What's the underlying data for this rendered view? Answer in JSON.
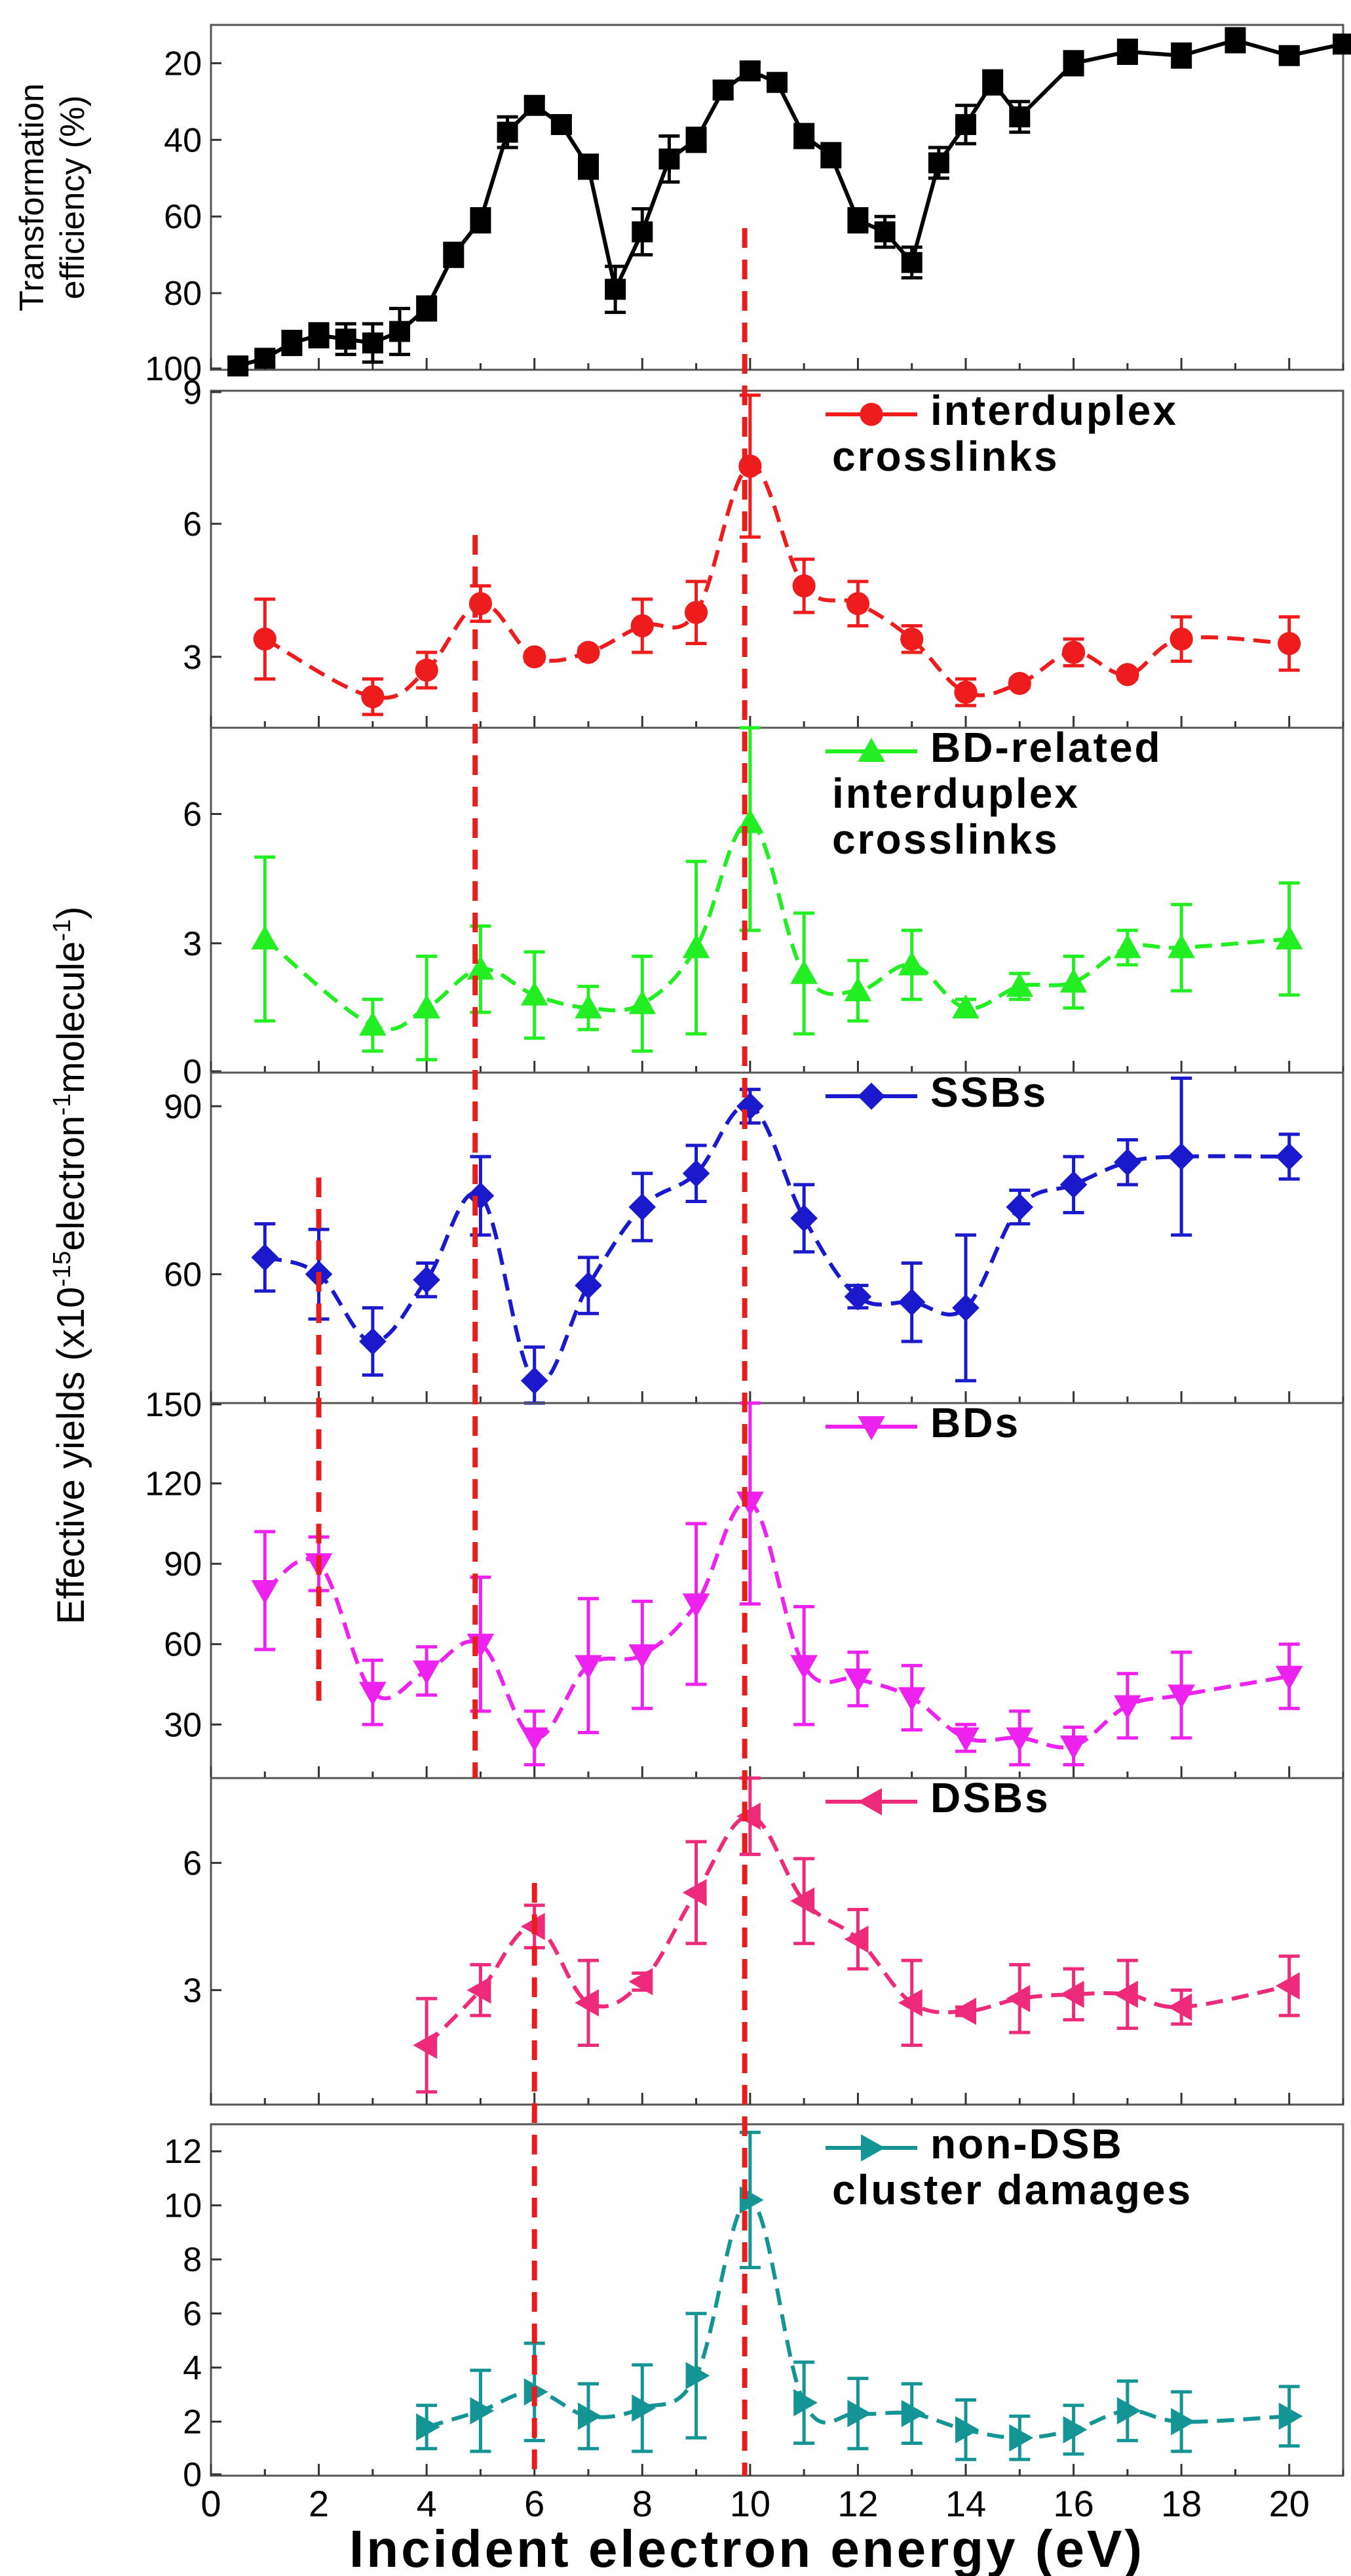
{
  "chart_data": {
    "type": "line",
    "xlabel": "Incident electron energy (eV)",
    "xlim": [
      0,
      21
    ],
    "xticks": [
      "0",
      "2",
      "4",
      "6",
      "8",
      "10",
      "12",
      "14",
      "16",
      "18",
      "20"
    ],
    "shared_ylabel": "Effective yields (x10^-15 electron^-1 molecule^-1)",
    "shared_ylabel_parts": {
      "base": "Effective yields (x10",
      "exp1": "-15",
      "mid1": "electron",
      "exp2": "-1",
      "mid2": "molecule",
      "exp3": "-1",
      "end": ")"
    },
    "dashed_guides_ev": [
      2,
      4.9,
      6,
      9.9
    ],
    "panels": [
      {
        "id": "transformation",
        "ylabel_lines": [
          "Transformation",
          "efficiency (%)"
        ],
        "ylim": [
          100,
          10
        ],
        "inverted": true,
        "yticks": [
          "20",
          "40",
          "60",
          "80",
          "100"
        ],
        "color": "#000000",
        "marker": "square",
        "legend": [],
        "x": [
          0.5,
          1,
          1.5,
          2,
          2.5,
          3,
          3.5,
          4,
          4.5,
          5,
          5.5,
          6,
          6.5,
          7,
          7.5,
          8,
          8.5,
          9,
          9.5,
          10,
          10.5,
          11,
          11.5,
          12,
          12.5,
          13,
          13.5,
          14,
          14.5,
          15,
          16,
          17,
          18,
          19,
          20,
          21
        ],
        "y": [
          99,
          97,
          93,
          91,
          92,
          93,
          90,
          84,
          70,
          61,
          38,
          31,
          36,
          47,
          79,
          64,
          45,
          40,
          27,
          22,
          25,
          39,
          44,
          61,
          64,
          72,
          46,
          36,
          25,
          34,
          20,
          17,
          18,
          14,
          18,
          15
        ],
        "err": [
          2,
          2,
          3,
          3,
          4,
          5,
          6,
          3,
          3,
          3,
          4,
          2,
          2,
          3,
          6,
          6,
          6,
          3,
          2,
          2,
          2,
          3,
          3,
          3,
          4,
          4,
          4,
          5,
          3,
          4,
          3,
          3,
          3,
          3,
          2,
          2
        ]
      },
      {
        "id": "interduplex",
        "ylim": [
          1.4,
          9
        ],
        "yticks": [
          "3",
          "6",
          "9"
        ],
        "color": "#ee1c1c",
        "marker": "circle",
        "legend": [
          "interduplex",
          "crosslinks"
        ],
        "x": [
          1,
          3,
          4,
          5,
          6,
          7,
          8,
          9,
          10,
          11,
          12,
          13,
          14,
          15,
          16,
          17,
          18,
          20
        ],
        "y": [
          3.4,
          2.1,
          2.7,
          4.2,
          3.0,
          3.1,
          3.7,
          4.0,
          7.3,
          4.6,
          4.2,
          3.4,
          2.2,
          2.4,
          3.1,
          2.6,
          3.4,
          3.3
        ],
        "err": [
          0.9,
          0.4,
          0.4,
          0.4,
          0.1,
          0.1,
          0.6,
          0.7,
          1.6,
          0.6,
          0.5,
          0.3,
          0.3,
          0.1,
          0.3,
          0.1,
          0.5,
          0.6
        ]
      },
      {
        "id": "bd-interduplex",
        "ylim": [
          0,
          8
        ],
        "yticks": [
          "0",
          "3",
          "6"
        ],
        "color": "#22ee22",
        "marker": "triangle-up",
        "legend": [
          "BD-related",
          "interduplex",
          "crosslinks"
        ],
        "x": [
          1,
          3,
          4,
          5,
          6,
          7,
          8,
          9,
          10,
          11,
          12,
          13,
          14,
          15,
          16,
          17,
          18,
          20
        ],
        "y": [
          3.1,
          1.1,
          1.5,
          2.4,
          1.8,
          1.5,
          1.6,
          2.9,
          5.8,
          2.3,
          1.9,
          2.5,
          1.5,
          2.0,
          2.1,
          2.9,
          2.9,
          3.1
        ],
        "err": [
          1.9,
          0.6,
          1.2,
          1.0,
          1.0,
          0.5,
          1.1,
          2.0,
          2.5,
          1.4,
          0.7,
          0.8,
          0.2,
          0.3,
          0.6,
          0.4,
          1.0,
          1.3
        ]
      },
      {
        "id": "ssbs",
        "ylim": [
          37,
          96
        ],
        "yticks": [
          "60",
          "90"
        ],
        "color": "#1a1acc",
        "marker": "diamond",
        "legend": [
          "SSBs"
        ],
        "x": [
          1,
          2,
          3,
          4,
          5,
          6,
          7,
          8,
          9,
          10,
          11,
          12,
          13,
          14,
          15,
          16,
          17,
          18,
          20
        ],
        "y": [
          63,
          60,
          48,
          59,
          74,
          41,
          58,
          72,
          78,
          90,
          70,
          56,
          55,
          54,
          72,
          76,
          80,
          81,
          81
        ],
        "err": [
          6,
          8,
          6,
          3,
          7,
          6,
          5,
          6,
          5,
          3,
          6,
          2,
          7,
          13,
          3,
          5,
          4,
          14,
          4
        ]
      },
      {
        "id": "bds",
        "ylim": [
          10,
          150
        ],
        "yticks": [
          "30",
          "60",
          "90",
          "120",
          "150"
        ],
        "color": "#ee22ee",
        "marker": "triangle-down",
        "legend": [
          "BDs"
        ],
        "x": [
          1,
          2,
          3,
          4,
          5,
          6,
          7,
          8,
          9,
          10,
          11,
          12,
          13,
          14,
          15,
          16,
          17,
          18,
          20
        ],
        "y": [
          80,
          90,
          42,
          50,
          60,
          25,
          52,
          56,
          75,
          113,
          52,
          47,
          40,
          25,
          25,
          22,
          37,
          41,
          48
        ],
        "err": [
          22,
          10,
          12,
          9,
          25,
          10,
          25,
          20,
          30,
          38,
          22,
          10,
          12,
          5,
          10,
          7,
          12,
          16,
          12
        ]
      },
      {
        "id": "dsbs",
        "ylim": [
          0.3,
          8
        ],
        "yticks": [
          "3",
          "6"
        ],
        "color": "#ee2a7b",
        "marker": "triangle-left",
        "legend": [
          "DSBs"
        ],
        "x": [
          4,
          5,
          6,
          7,
          8,
          9,
          10,
          11,
          12,
          13,
          14,
          15,
          16,
          17,
          18,
          20
        ],
        "y": [
          1.7,
          3.0,
          4.5,
          2.7,
          3.2,
          5.3,
          7.1,
          5.1,
          4.2,
          2.7,
          2.5,
          2.8,
          2.9,
          2.9,
          2.6,
          3.1
        ],
        "err": [
          1.1,
          0.6,
          0.5,
          1.0,
          0.2,
          1.2,
          0.9,
          1.0,
          0.7,
          1.0,
          0.1,
          0.8,
          0.6,
          0.8,
          0.4,
          0.7
        ]
      },
      {
        "id": "non-dsb",
        "ylim": [
          0,
          13
        ],
        "yticks": [
          "0",
          "2",
          "4",
          "6",
          "8",
          "10",
          "12"
        ],
        "color": "#149494",
        "marker": "triangle-right",
        "legend": [
          "non-DSB",
          "cluster damages"
        ],
        "x": [
          4,
          5,
          6,
          7,
          8,
          9,
          10,
          11,
          12,
          13,
          14,
          15,
          16,
          17,
          18,
          20
        ],
        "y": [
          1.8,
          2.4,
          3.1,
          2.2,
          2.5,
          3.7,
          10.2,
          2.7,
          2.3,
          2.3,
          1.7,
          1.4,
          1.7,
          2.4,
          2.0,
          2.2
        ],
        "err": [
          0.8,
          1.5,
          1.8,
          1.2,
          1.6,
          2.3,
          2.5,
          1.5,
          1.3,
          1.1,
          1.1,
          0.8,
          0.9,
          1.1,
          1.1,
          1.1
        ]
      }
    ]
  }
}
